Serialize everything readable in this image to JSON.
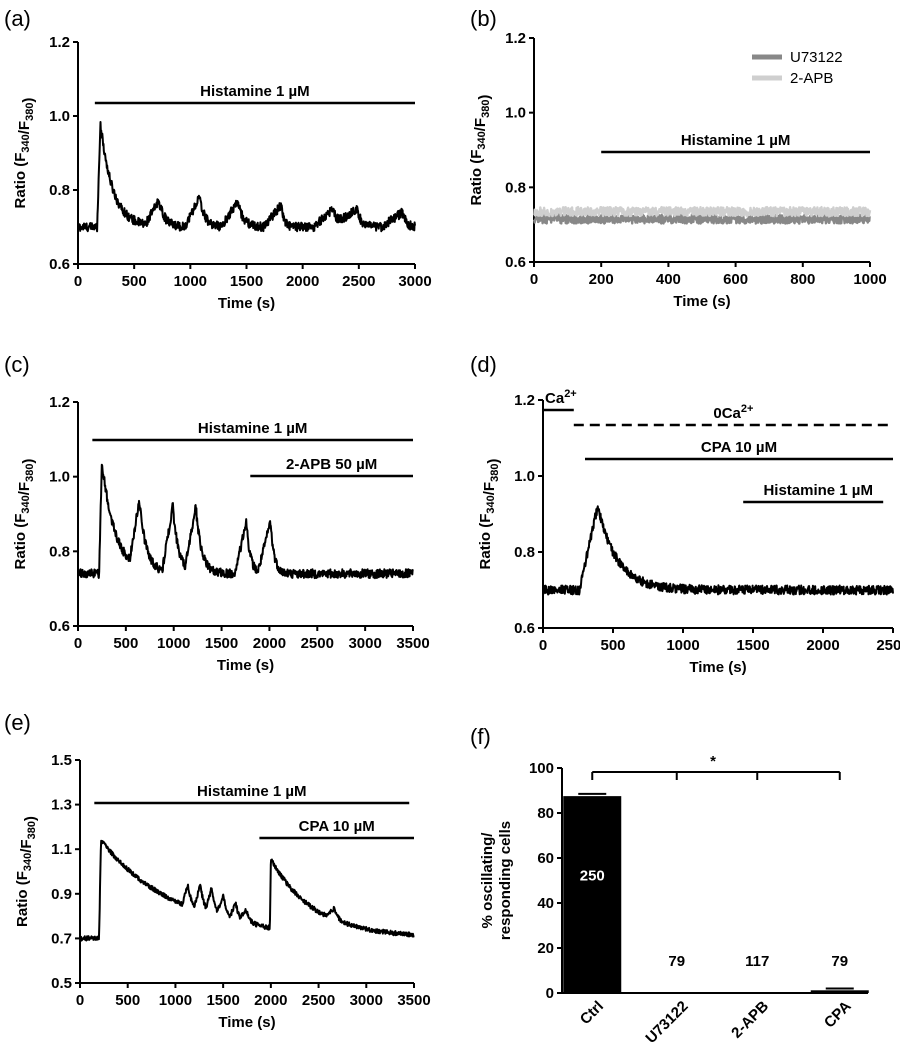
{
  "chart_data": [
    {
      "panel": "(a)",
      "type": "line",
      "xlabel": "Time (s)",
      "ylabel": "Ratio (F340/F380)",
      "ylabel_parts": {
        "main": "Ratio (F",
        "sub1": "340",
        "mid": "/F",
        "sub2": "380",
        "end": ")"
      },
      "xlim": [
        0,
        3000
      ],
      "ylim": [
        0.6,
        1.2
      ],
      "xticks": [
        "0",
        "500",
        "1000",
        "1500",
        "2000",
        "2500",
        "3000"
      ],
      "yticks": [
        "0.6",
        "0.8",
        "1.0",
        "1.2"
      ],
      "annotations": [
        {
          "text": "Histamine 1 µM",
          "x_start": 150,
          "x_end": 3000
        }
      ],
      "series": [
        {
          "values": {
            "baseline": 0.7,
            "noise": 0.012,
            "events": [
              [
                170,
                0.28,
                110,
                30
              ],
              [
                600,
                0.07,
                50,
                120
              ],
              [
                950,
                0.08,
                50,
                130
              ],
              [
                1280,
                0.07,
                50,
                140
              ],
              [
                1650,
                0.06,
                25,
                160
              ],
              [
                2100,
                0.05,
                45,
                170
              ],
              [
                2300,
                0.05,
                40,
                180
              ],
              [
                2700,
                0.04,
                30,
                190
              ]
            ]
          }
        }
      ]
    },
    {
      "panel": "(b)",
      "type": "line",
      "xlabel": "Time (s)",
      "ylabel": "Ratio (F340/F380)",
      "ylabel_parts": {
        "main": "Ratio (F",
        "sub1": "340",
        "mid": "/F",
        "sub2": "380",
        "end": ")"
      },
      "xlim": [
        0,
        1000
      ],
      "ylim": [
        0.6,
        1.2
      ],
      "xticks": [
        "0",
        "200",
        "400",
        "600",
        "800",
        "1000"
      ],
      "yticks": [
        "0.6",
        "0.8",
        "1.0",
        "1.2"
      ],
      "legend": "top-right",
      "annotations": [
        {
          "text": "Histamine 1 µM",
          "x_start": 200,
          "x_end": 1000
        }
      ],
      "series": [
        {
          "name": "U73122",
          "color": "#888888",
          "values": {
            "baseline": 0.715,
            "noise": 0.012,
            "events": []
          }
        },
        {
          "name": "2-APB",
          "color": "#cfcfcf",
          "values": {
            "baseline": 0.735,
            "noise": 0.012,
            "events": []
          }
        }
      ]
    },
    {
      "panel": "(c)",
      "type": "line",
      "xlabel": "Time (s)",
      "ylabel": "Ratio (F340/F380)",
      "ylabel_parts": {
        "main": "Ratio (F",
        "sub1": "340",
        "mid": "/F",
        "sub2": "380",
        "end": ")"
      },
      "xlim": [
        0,
        3500
      ],
      "ylim": [
        0.6,
        1.2
      ],
      "xticks": [
        "0",
        "500",
        "1000",
        "1500",
        "2000",
        "2500",
        "3000",
        "3500"
      ],
      "yticks": [
        "0.6",
        "0.8",
        "1.0",
        "1.2"
      ],
      "annotations": [
        {
          "text": "Histamine 1 µM",
          "x_start": 150,
          "x_end": 3500
        },
        {
          "text": "2-APB 50 µM",
          "x_start": 1800,
          "x_end": 3500
        }
      ],
      "series": [
        {
          "values": {
            "baseline": 0.74,
            "noise": 0.012,
            "events": [
              [
                220,
                0.3,
                140,
                30
              ],
              [
                540,
                0.18,
                70,
                100
              ],
              [
                880,
                0.18,
                60,
                110
              ],
              [
                1120,
                0.18,
                60,
                110
              ],
              [
                1640,
                0.14,
                40,
                120
              ],
              [
                1880,
                0.14,
                40,
                130
              ]
            ]
          }
        }
      ]
    },
    {
      "panel": "(d)",
      "type": "line",
      "xlabel": "Time (s)",
      "ylabel": "Ratio (F340/F380)",
      "ylabel_parts": {
        "main": "Ratio (F",
        "sub1": "340",
        "mid": "/F",
        "sub2": "380",
        "end": ")"
      },
      "xlim": [
        0,
        2500
      ],
      "ylim": [
        0.6,
        1.2
      ],
      "xticks": [
        "0",
        "500",
        "1000",
        "1500",
        "2000",
        "2500"
      ],
      "yticks": [
        "0.6",
        "0.8",
        "1.0",
        "1.2"
      ],
      "annotations": [
        {
          "text": "Ca2+",
          "x_start": 0,
          "x_end": 220,
          "style": "solid"
        },
        {
          "text": "0Ca2+",
          "x_start": 220,
          "x_end": 2500,
          "style": "dashed"
        },
        {
          "text": "CPA 10 µM",
          "x_start": 300,
          "x_end": 2500
        },
        {
          "text": "Histamine 1 µM",
          "x_start": 1430,
          "x_end": 2430
        }
      ],
      "series": [
        {
          "values": {
            "baseline": 0.7,
            "noise": 0.012,
            "events": [
              [
                260,
                0.22,
                140,
                130
              ]
            ]
          }
        }
      ]
    },
    {
      "panel": "(e)",
      "type": "line",
      "xlabel": "Time (s)",
      "ylabel": "Ratio (F340/F380)",
      "ylabel_parts": {
        "main": "Ratio (F",
        "sub1": "340",
        "mid": "/F",
        "sub2": "380",
        "end": ")"
      },
      "xlim": [
        0,
        3500
      ],
      "ylim": [
        0.5,
        1.5
      ],
      "xticks": [
        "0",
        "500",
        "1000",
        "1500",
        "2000",
        "2500",
        "3000",
        "3500"
      ],
      "yticks": [
        "0.5",
        "0.7",
        "0.9",
        "1.1",
        "1.3",
        "1.5"
      ],
      "annotations": [
        {
          "text": "Histamine 1 µM",
          "x_start": 150,
          "x_end": 3450
        },
        {
          "text": "CPA 10 µM",
          "x_start": 1880,
          "x_end": 3500
        }
      ],
      "series": [
        {
          "values": {
            "baseline": 0.7,
            "noise": 0.01,
            "events": [
              [
                200,
                0.44,
                800,
                20
              ],
              [
                1070,
                0.1,
                40,
                60
              ],
              [
                1200,
                0.12,
                40,
                60
              ],
              [
                1320,
                0.12,
                40,
                60
              ],
              [
                1440,
                0.1,
                40,
                60
              ],
              [
                1570,
                0.08,
                40,
                60
              ],
              [
                1680,
                0.06,
                40,
                60
              ],
              [
                1990,
                0.31,
                420,
                10
              ],
              [
                2580,
                0.05,
                40,
                80
              ]
            ]
          }
        }
      ]
    },
    {
      "panel": "(f)",
      "type": "bar",
      "ylabel": "% oscillating/ responding cells",
      "ylabel_lines": [
        "% oscillating/",
        "responding cells"
      ],
      "categories": [
        "Ctrl",
        "U73122",
        "2-APB",
        "CPA"
      ],
      "values": [
        87.5,
        0,
        0,
        1.2
      ],
      "errors": [
        1.0,
        0,
        0,
        0.8
      ],
      "n_labels": [
        "250",
        "79",
        "117",
        "79"
      ],
      "ylim": [
        0,
        100
      ],
      "yticks": [
        "0",
        "20",
        "40",
        "60",
        "80",
        "100"
      ],
      "significance": "*"
    }
  ]
}
